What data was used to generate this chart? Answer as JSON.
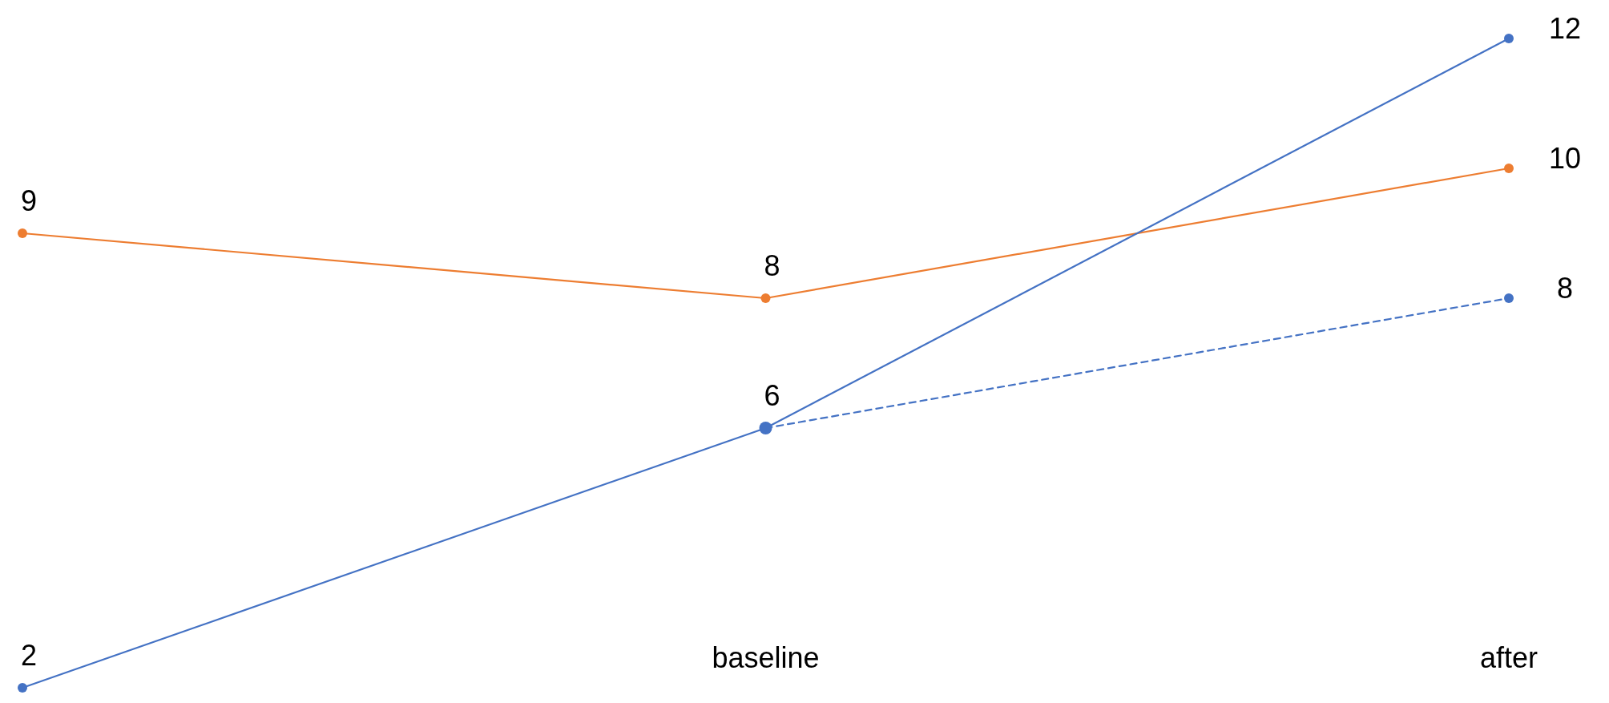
{
  "chart_data": {
    "type": "line",
    "categories": [
      null,
      "baseline",
      "after"
    ],
    "series": [
      {
        "color": "#ed7d31",
        "values": [
          9,
          8,
          10
        ]
      },
      {
        "color": "#4472c4",
        "values": [
          2,
          6,
          12
        ]
      },
      {
        "color": "#4472c4",
        "values": [
          null,
          6,
          8
        ],
        "value_labels": [
          null,
          null,
          "8"
        ],
        "line_style": "dashed"
      }
    ],
    "data_labels": true,
    "marker": "circle"
  }
}
